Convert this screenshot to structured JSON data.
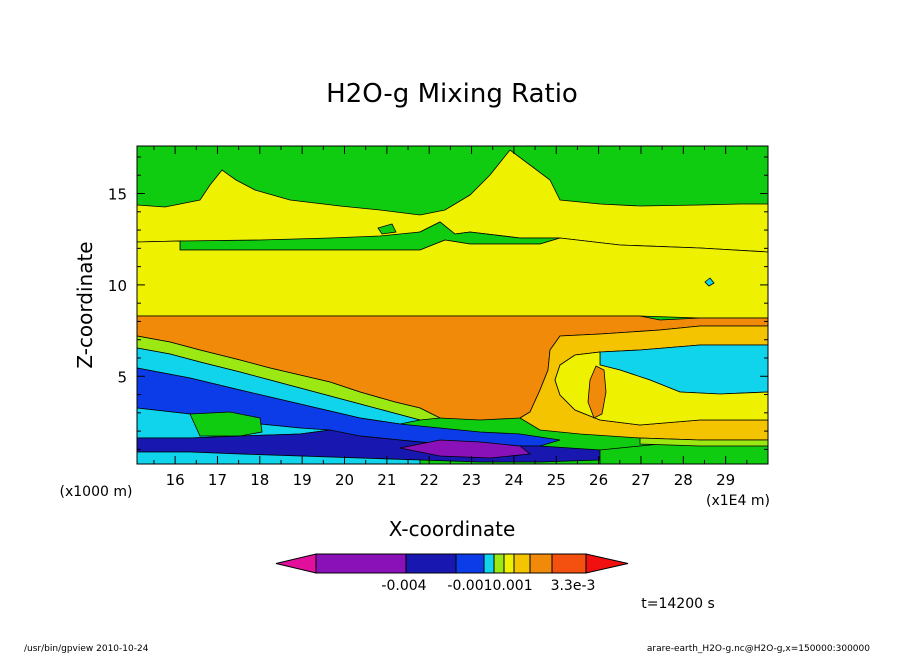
{
  "chart_data": {
    "type": "heatmap",
    "title": "H2O-g Mixing Ratio",
    "xlabel": "X-coordinate",
    "ylabel": "Z-coordinate",
    "x_unit_label": "(x1E4 m)",
    "y_unit_label": "(x1000 m)",
    "x_ticks": [
      "16",
      "17",
      "18",
      "19",
      "20",
      "21",
      "22",
      "23",
      "24",
      "25",
      "26",
      "27",
      "28",
      "29"
    ],
    "y_ticks": [
      "5",
      "10",
      "15"
    ],
    "xlim": [
      15.1,
      30.0
    ],
    "ylim": [
      0.2,
      17.6
    ],
    "colorbar": {
      "colors": [
        "#e0109c",
        "#8a10b8",
        "#1818b0",
        "#0c3ce8",
        "#10d4ec",
        "#9ce812",
        "#eef200",
        "#f4c400",
        "#f08a08",
        "#f45010",
        "#f01010"
      ],
      "labels": [
        "-0.004",
        "-0.0010.001",
        "3.3e-3"
      ],
      "label_values": [
        -0.004,
        -0.001,
        0.001,
        0.0033
      ]
    },
    "time_label": "t=14200 s",
    "footer_left": "/usr/bin/gpview   2010-10-24",
    "footer_right": "arare-earth_H2O-g.nc@H2O-g,x=150000:300000",
    "palette": {
      "green": "#10cc10",
      "yellow": "#eef200",
      "orange": "#f08a08",
      "amber": "#f4c400",
      "lightgreen": "#9ce812",
      "cyan": "#10d4ec",
      "blue": "#0c3ce8",
      "navy": "#1818b0",
      "purple": "#8a10b8"
    }
  }
}
